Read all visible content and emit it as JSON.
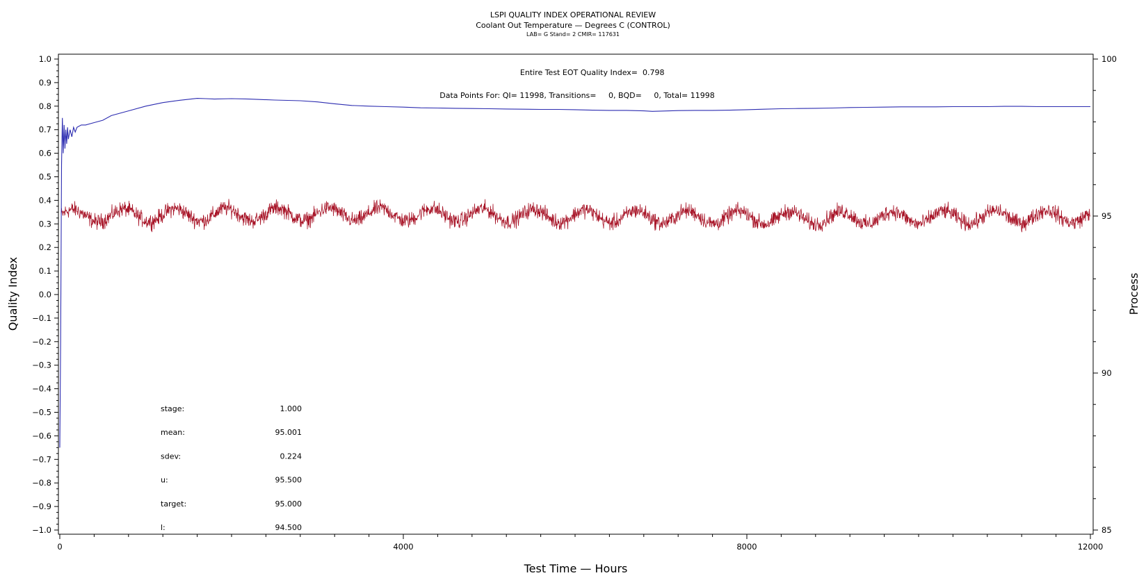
{
  "chart_data": {
    "type": "line",
    "title": "LSPI QUALITY INDEX OPERATIONAL REVIEW",
    "subtitle": "Coolant Out Temperature — Degrees C (CONTROL)",
    "subtitle2": "LAB= G Stand= 2 CMIR= 117631",
    "xlabel": "Test Time — Hours",
    "ylabel_left": "Quality Index",
    "ylabel_right": "Process",
    "xlim": [
      0,
      12000
    ],
    "ylim_left": [
      -1.0,
      1.0
    ],
    "ylim_right": [
      85,
      100
    ],
    "x_ticks": [
      "0",
      "4000",
      "8000",
      "12000"
    ],
    "y_left_ticks": [
      "1.0",
      "0.9",
      "0.8",
      "0.7",
      "0.6",
      "0.5",
      "0.4",
      "0.3",
      "0.2",
      "0.1",
      "0.0",
      "−0.1",
      "−0.2",
      "−0.3",
      "−0.4",
      "−0.5",
      "−0.6",
      "−0.7",
      "−0.8",
      "−0.9",
      "−1.0"
    ],
    "y_right_ticks": [
      "100",
      "95",
      "90",
      "85"
    ],
    "annotations": {
      "eot_label": "Entire Test EOT Quality Index=",
      "eot_value": "0.798",
      "points_line": "Data Points For: QI= 11998, Transitions=     0, BQD=     0, Total= 11998"
    },
    "stats": [
      {
        "label": "stage:",
        "value": "1.000"
      },
      {
        "label": "mean:",
        "value": "95.001"
      },
      {
        "label": "sdev:",
        "value": "0.224"
      },
      {
        "label": "u:",
        "value": "95.500"
      },
      {
        "label": "target:",
        "value": "95.000"
      },
      {
        "label": "l:",
        "value": "94.500"
      }
    ],
    "series": [
      {
        "axis": "left",
        "color": "#2b2bb0",
        "x": [
          0,
          10,
          20,
          30,
          40,
          50,
          60,
          70,
          80,
          90,
          100,
          120,
          140,
          160,
          180,
          200,
          250,
          300,
          400,
          500,
          600,
          800,
          1000,
          1200,
          1400,
          1600,
          1700,
          1800,
          2000,
          2200,
          2500,
          2800,
          3000,
          3200,
          3400,
          3600,
          3800,
          4000,
          4200,
          4400,
          4600,
          4800,
          5000,
          5200,
          5400,
          5600,
          5800,
          6000,
          6200,
          6400,
          6600,
          6800,
          6900,
          7000,
          7200,
          7400,
          7600,
          7800,
          8000,
          8200,
          8400,
          8600,
          8800,
          9000,
          9200,
          9400,
          9600,
          9800,
          10000,
          10200,
          10400,
          10600,
          10800,
          11000,
          11200,
          11400,
          11600,
          11800,
          12000
        ],
        "values": [
          -0.65,
          -0.2,
          0.55,
          0.75,
          0.6,
          0.72,
          0.62,
          0.7,
          0.64,
          0.71,
          0.66,
          0.7,
          0.67,
          0.71,
          0.69,
          0.71,
          0.72,
          0.72,
          0.73,
          0.74,
          0.76,
          0.78,
          0.8,
          0.815,
          0.825,
          0.833,
          0.832,
          0.83,
          0.832,
          0.83,
          0.826,
          0.823,
          0.818,
          0.81,
          0.803,
          0.8,
          0.798,
          0.796,
          0.793,
          0.792,
          0.791,
          0.79,
          0.789,
          0.788,
          0.787,
          0.786,
          0.786,
          0.785,
          0.783,
          0.782,
          0.782,
          0.78,
          0.778,
          0.779,
          0.781,
          0.782,
          0.782,
          0.783,
          0.785,
          0.787,
          0.789,
          0.79,
          0.791,
          0.792,
          0.794,
          0.795,
          0.796,
          0.797,
          0.797,
          0.797,
          0.798,
          0.798,
          0.798,
          0.799,
          0.799,
          0.798,
          0.798,
          0.798,
          0.798
        ]
      },
      {
        "axis": "right",
        "color": "#a81528",
        "n_points": 11998,
        "mean": 95.001,
        "sdev": 0.224
      }
    ],
    "grid": false,
    "legend": "none"
  }
}
